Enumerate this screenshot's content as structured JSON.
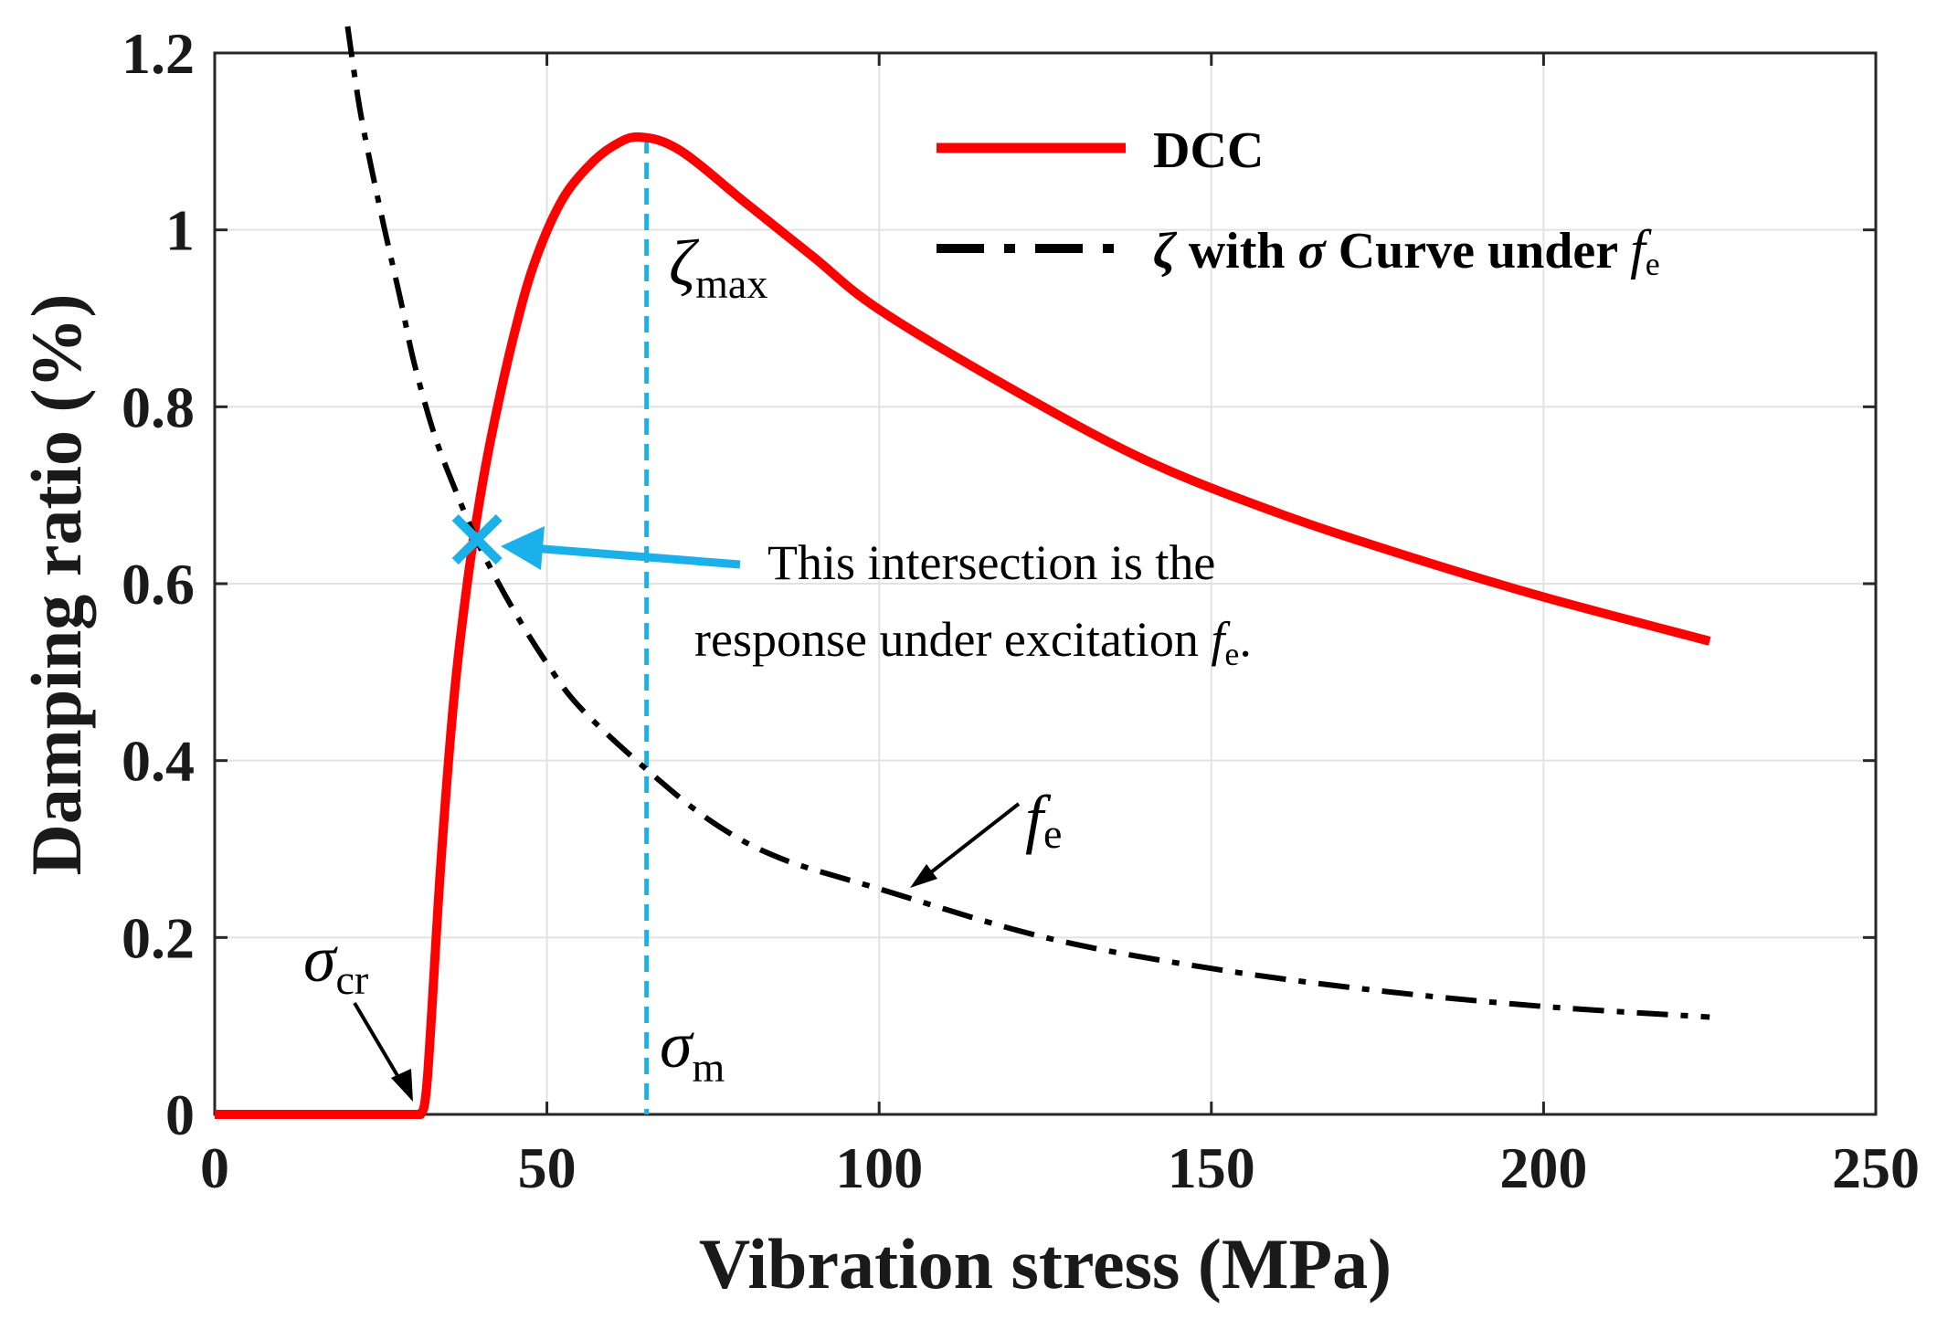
{
  "chart_data": {
    "type": "line",
    "xlabel": "Vibration stress (MPa)",
    "ylabel": "Damping ratio (%)",
    "xlim": [
      0,
      250
    ],
    "ylim": [
      0,
      1.2
    ],
    "xticks": [
      "0",
      "50",
      "100",
      "150",
      "200",
      "250"
    ],
    "yticks": [
      "0",
      "0.2",
      "0.4",
      "0.6",
      "0.8",
      "1",
      "1.2"
    ],
    "grid": true,
    "legend_position": "top-right",
    "colors": {
      "dcc": "#ff0000",
      "fe_curve": "#000000",
      "marker": "#1ab1ea"
    },
    "series": [
      {
        "name": "DCC",
        "x": [
          0,
          31,
          32,
          34,
          36,
          38,
          40,
          42,
          45,
          48,
          52,
          56,
          60,
          64,
          70,
          80,
          90,
          100,
          120,
          140,
          160,
          180,
          200,
          225
        ],
        "y": [
          0,
          0,
          0.04,
          0.28,
          0.47,
          0.6,
          0.7,
          0.78,
          0.88,
          0.96,
          1.03,
          1.07,
          1.095,
          1.105,
          1.09,
          1.03,
          0.97,
          0.91,
          0.82,
          0.74,
          0.68,
          0.63,
          0.585,
          0.535
        ]
      },
      {
        "name": "ζ with σ Curve under f_e",
        "x": [
          20,
          22,
          25,
          28,
          30,
          33,
          36,
          40,
          45,
          50,
          55,
          65,
          75,
          85,
          100,
          125,
          150,
          175,
          200,
          225
        ],
        "y": [
          1.23,
          1.13,
          1.02,
          0.92,
          0.85,
          0.77,
          0.71,
          0.64,
          0.57,
          0.51,
          0.46,
          0.39,
          0.33,
          0.29,
          0.255,
          0.2,
          0.165,
          0.14,
          0.122,
          0.11
        ]
      }
    ],
    "intersection": {
      "x": 39.5,
      "y": 0.65
    },
    "sigma_cr": 31,
    "sigma_m": 65,
    "zeta_max": 1.105,
    "legend": {
      "dcc_label": "DCC",
      "fe_label_prefix": "ζ",
      "fe_label_with": " with ",
      "fe_label_sigma": "σ",
      "fe_label_curve": " Curve under ",
      "fe_label_f": "f",
      "fe_label_sub": "e"
    },
    "annotations": {
      "intersection_line1": "This intersection is the",
      "intersection_line2": "response under excitation ",
      "intersection_f": "f",
      "intersection_sub": "e",
      "intersection_end": ".",
      "zeta_symbol": "ζ",
      "zeta_sub": "max",
      "sigma_symbol": "σ",
      "sigma_cr_sub": "cr",
      "sigma_m_sub": "m",
      "fe_symbol": "f",
      "fe_sub": "e"
    }
  }
}
